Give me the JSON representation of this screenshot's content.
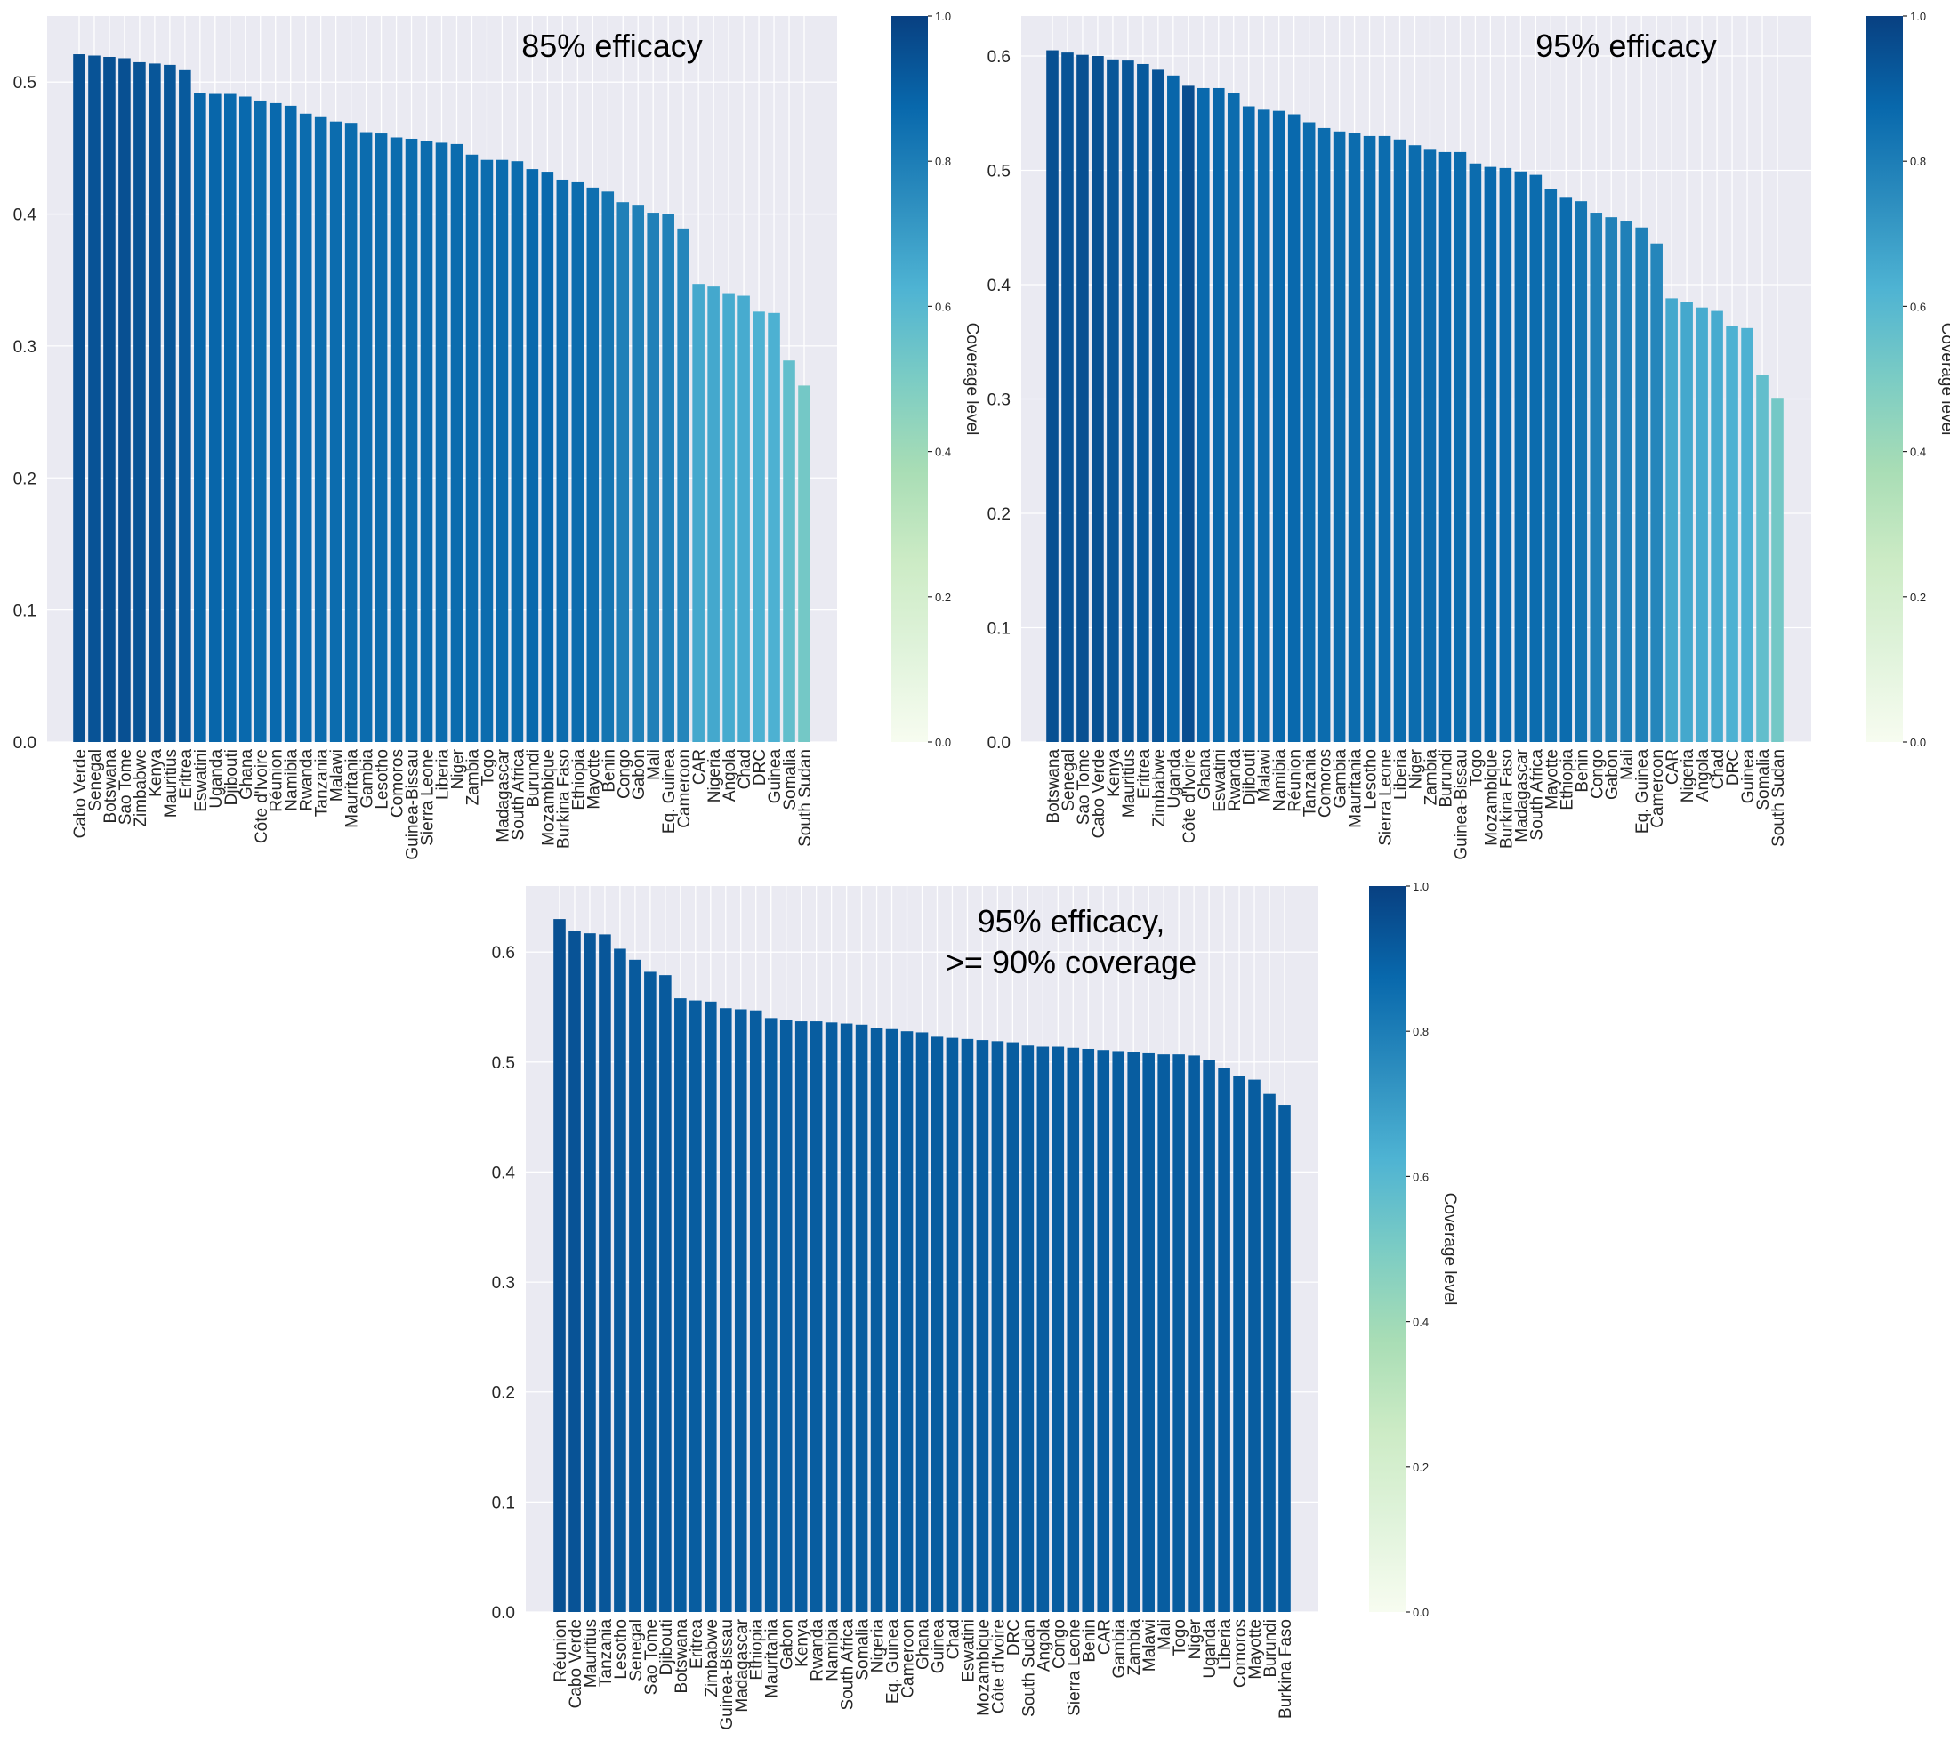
{
  "colorbar_label": "Coverage level",
  "chart_data": [
    {
      "type": "bar",
      "title": "85% efficacy",
      "ylim": [
        0,
        0.55
      ],
      "yticks": [
        "0.0",
        "0.1",
        "0.2",
        "0.3",
        "0.4",
        "0.5"
      ],
      "grid": true,
      "colorbar": {
        "label": "Coverage level",
        "range": [
          0,
          1
        ],
        "ticks": [
          "0.0",
          "0.2",
          "0.4",
          "0.6",
          "0.8",
          "1.0"
        ]
      },
      "categories": [
        "Cabo Verde",
        "Senegal",
        "Botswana",
        "Sao Tome",
        "Zimbabwe",
        "Kenya",
        "Mauritius",
        "Eritrea",
        "Eswatini",
        "Uganda",
        "Djibouti",
        "Ghana",
        "Côte d'Ivoire",
        "Réunion",
        "Namibia",
        "Rwanda",
        "Tanzania",
        "Malawi",
        "Mauritania",
        "Gambia",
        "Lesotho",
        "Comoros",
        "Guinea-Bissau",
        "Sierra Leone",
        "Liberia",
        "Niger",
        "Zambia",
        "Togo",
        "Madagascar",
        "South Africa",
        "Burundi",
        "Mozambique",
        "Burkina Faso",
        "Ethiopia",
        "Mayotte",
        "Benin",
        "Congo",
        "Gabon",
        "Mali",
        "Eq. Guinea",
        "Cameroon",
        "CAR",
        "Nigeria",
        "Angola",
        "Chad",
        "DRC",
        "Guinea",
        "Somalia",
        "South Sudan"
      ],
      "values": [
        0.521,
        0.52,
        0.519,
        0.518,
        0.515,
        0.514,
        0.513,
        0.509,
        0.492,
        0.491,
        0.491,
        0.489,
        0.486,
        0.484,
        0.482,
        0.476,
        0.474,
        0.47,
        0.469,
        0.462,
        0.461,
        0.458,
        0.457,
        0.455,
        0.454,
        0.453,
        0.445,
        0.441,
        0.441,
        0.44,
        0.434,
        0.432,
        0.426,
        0.424,
        0.42,
        0.417,
        0.409,
        0.407,
        0.401,
        0.4,
        0.389,
        0.347,
        0.345,
        0.34,
        0.338,
        0.326,
        0.325,
        0.289,
        0.27
      ],
      "coverage": [
        0.95,
        0.94,
        0.95,
        0.95,
        0.94,
        0.93,
        0.93,
        0.92,
        0.88,
        0.88,
        0.87,
        0.87,
        0.86,
        0.87,
        0.87,
        0.86,
        0.86,
        0.86,
        0.86,
        0.86,
        0.86,
        0.86,
        0.86,
        0.86,
        0.86,
        0.86,
        0.86,
        0.86,
        0.86,
        0.86,
        0.87,
        0.87,
        0.86,
        0.86,
        0.85,
        0.83,
        0.79,
        0.79,
        0.79,
        0.79,
        0.77,
        0.66,
        0.66,
        0.65,
        0.65,
        0.63,
        0.63,
        0.57,
        0.52
      ]
    },
    {
      "type": "bar",
      "title": "95% efficacy",
      "ylim": [
        0,
        0.635
      ],
      "yticks": [
        "0.0",
        "0.1",
        "0.2",
        "0.3",
        "0.4",
        "0.5",
        "0.6"
      ],
      "grid": true,
      "colorbar": {
        "label": "Coverage level",
        "range": [
          0,
          1
        ],
        "ticks": [
          "0.0",
          "0.2",
          "0.4",
          "0.6",
          "0.8",
          "1.0"
        ]
      },
      "categories": [
        "Botswana",
        "Senegal",
        "Sao Tome",
        "Cabo Verde",
        "Kenya",
        "Mauritius",
        "Eritrea",
        "Zimbabwe",
        "Uganda",
        "Côte d'Ivoire",
        "Ghana",
        "Eswatini",
        "Rwanda",
        "Djibouti",
        "Malawi",
        "Namibia",
        "Réunion",
        "Tanzania",
        "Comoros",
        "Gambia",
        "Mauritania",
        "Lesotho",
        "Sierra Leone",
        "Liberia",
        "Niger",
        "Zambia",
        "Burundi",
        "Guinea-Bissau",
        "Togo",
        "Mozambique",
        "Burkina Faso",
        "Madagascar",
        "South Africa",
        "Mayotte",
        "Ethiopia",
        "Benin",
        "Congo",
        "Gabon",
        "Mali",
        "Eq. Guinea",
        "Cameroon",
        "CAR",
        "Nigeria",
        "Angola",
        "Chad",
        "DRC",
        "Guinea",
        "Somalia",
        "South Sudan"
      ],
      "values": [
        0.605,
        0.603,
        0.601,
        0.6,
        0.597,
        0.596,
        0.593,
        0.588,
        0.583,
        0.574,
        0.572,
        0.572,
        0.568,
        0.556,
        0.553,
        0.552,
        0.549,
        0.542,
        0.537,
        0.534,
        0.533,
        0.53,
        0.53,
        0.527,
        0.522,
        0.518,
        0.516,
        0.516,
        0.506,
        0.503,
        0.502,
        0.499,
        0.496,
        0.484,
        0.476,
        0.473,
        0.463,
        0.459,
        0.456,
        0.45,
        0.436,
        0.388,
        0.385,
        0.38,
        0.377,
        0.364,
        0.362,
        0.321,
        0.301
      ],
      "coverage": [
        0.95,
        0.94,
        0.95,
        0.95,
        0.93,
        0.93,
        0.92,
        0.94,
        0.88,
        0.96,
        0.87,
        0.88,
        0.86,
        0.87,
        0.86,
        0.87,
        0.87,
        0.86,
        0.86,
        0.86,
        0.86,
        0.86,
        0.86,
        0.86,
        0.86,
        0.86,
        0.87,
        0.86,
        0.86,
        0.87,
        0.86,
        0.86,
        0.86,
        0.85,
        0.86,
        0.83,
        0.79,
        0.79,
        0.79,
        0.79,
        0.77,
        0.66,
        0.66,
        0.65,
        0.65,
        0.63,
        0.63,
        0.57,
        0.52
      ]
    },
    {
      "type": "bar",
      "title": "95% efficacy,",
      "title_line2": ">= 90% coverage",
      "ylim": [
        0,
        0.66
      ],
      "yticks": [
        "0.0",
        "0.1",
        "0.2",
        "0.3",
        "0.4",
        "0.5",
        "0.6"
      ],
      "grid": true,
      "colorbar": {
        "label": "Coverage level",
        "range": [
          0,
          1
        ],
        "ticks": [
          "0.0",
          "0.2",
          "0.4",
          "0.6",
          "0.8",
          "1.0"
        ]
      },
      "categories": [
        "Réunion",
        "Cabo Verde",
        "Mauritius",
        "Tanzania",
        "Lesotho",
        "Senegal",
        "Sao Tome",
        "Djibouti",
        "Botswana",
        "Eritrea",
        "Zimbabwe",
        "Guinea-Bissau",
        "Madagascar",
        "Ethiopia",
        "Mauritania",
        "Gabon",
        "Kenya",
        "Rwanda",
        "Namibia",
        "South Africa",
        "Somalia",
        "Nigeria",
        "Eq. Guinea",
        "Cameroon",
        "Ghana",
        "Guinea",
        "Chad",
        "Eswatini",
        "Mozambique",
        "Côte d'Ivoire",
        "DRC",
        "South Sudan",
        "Angola",
        "Congo",
        "Sierra Leone",
        "Benin",
        "CAR",
        "Gambia",
        "Zambia",
        "Malawi",
        "Mali",
        "Togo",
        "Niger",
        "Uganda",
        "Liberia",
        "Comoros",
        "Mayotte",
        "Burundi",
        "Burkina Faso"
      ],
      "values": [
        0.63,
        0.619,
        0.617,
        0.616,
        0.603,
        0.593,
        0.582,
        0.579,
        0.558,
        0.556,
        0.555,
        0.549,
        0.548,
        0.547,
        0.54,
        0.538,
        0.537,
        0.537,
        0.536,
        0.535,
        0.534,
        0.531,
        0.53,
        0.528,
        0.527,
        0.523,
        0.522,
        0.521,
        0.52,
        0.519,
        0.518,
        0.515,
        0.514,
        0.514,
        0.513,
        0.512,
        0.511,
        0.51,
        0.509,
        0.508,
        0.507,
        0.507,
        0.506,
        0.502,
        0.495,
        0.487,
        0.484,
        0.471,
        0.461
      ],
      "coverage": [
        0.95,
        0.94,
        0.93,
        0.93,
        0.92,
        0.92,
        0.92,
        0.92,
        0.91,
        0.91,
        0.91,
        0.91,
        0.91,
        0.91,
        0.91,
        0.91,
        0.91,
        0.91,
        0.91,
        0.91,
        0.91,
        0.91,
        0.91,
        0.91,
        0.91,
        0.91,
        0.91,
        0.91,
        0.91,
        0.91,
        0.91,
        0.91,
        0.91,
        0.91,
        0.91,
        0.91,
        0.91,
        0.91,
        0.91,
        0.91,
        0.91,
        0.91,
        0.91,
        0.91,
        0.91,
        0.91,
        0.91,
        0.91,
        0.91
      ]
    }
  ]
}
